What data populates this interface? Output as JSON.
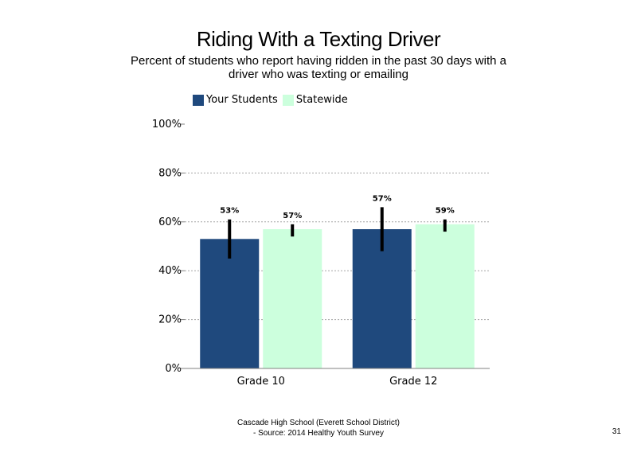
{
  "chart_data": {
    "type": "bar",
    "title": "Riding With a Texting Driver",
    "subtitle": "Percent of students who report having ridden in the past 30 days with a driver who was texting or emailing",
    "categories": [
      "Grade 10",
      "Grade 12"
    ],
    "series": [
      {
        "name": "Your Students",
        "color": "#1f497d",
        "values": [
          53,
          57
        ],
        "labels": [
          "53%",
          "57%"
        ],
        "error_low": [
          45,
          48
        ],
        "error_high": [
          61,
          66
        ]
      },
      {
        "name": "Statewide",
        "color": "#ccffdd",
        "values": [
          57,
          59
        ],
        "labels": [
          "57%",
          "59%"
        ],
        "error_low": [
          54,
          56
        ],
        "error_high": [
          59,
          61
        ]
      }
    ],
    "ylim": [
      0,
      100
    ],
    "yticks": [
      0,
      20,
      40,
      60,
      80,
      100
    ],
    "ytick_labels": [
      "0%",
      "20%",
      "40%",
      "60%",
      "80%",
      "100%"
    ],
    "xlabel": "",
    "ylabel": "",
    "grid": true,
    "legend_position": "top-left"
  },
  "footer": {
    "line1": "Cascade High School (Everett School District)",
    "line2": "- Source: 2014 Healthy Youth Survey"
  },
  "page_number": "31"
}
